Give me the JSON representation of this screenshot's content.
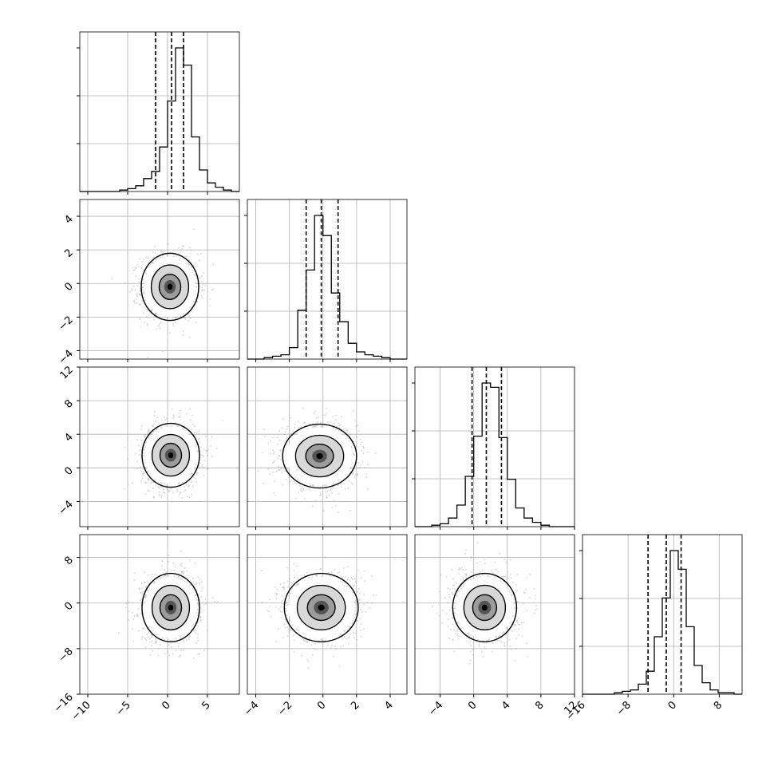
{
  "chart_data": {
    "type": "corner",
    "title": "",
    "grid": true,
    "scatter_color": "#999999",
    "density_colors": [
      "#ffffff",
      "#d0d0d0",
      "#a0a0a0",
      "#6a6a6a",
      "#303030",
      "#000000"
    ],
    "parameters": [
      {
        "range": [
          -11,
          9
        ],
        "ticks": [
          -10,
          -5,
          0,
          5
        ],
        "tick_labels": [
          "−10",
          "−5",
          "0",
          "5"
        ],
        "quantiles": [
          -1.5,
          0.5,
          2.0
        ],
        "mean": 0.5,
        "sigma": 1.6,
        "hist_counts": [
          0,
          0,
          0,
          0,
          0,
          1,
          2,
          4,
          9,
          14,
          31,
          63,
          100,
          88,
          38,
          15,
          6,
          3,
          1,
          0
        ]
      },
      {
        "range": [
          -4.5,
          5
        ],
        "ticks": [
          -4,
          -2,
          0,
          2,
          4
        ],
        "tick_labels": [
          "−4",
          "−2",
          "0",
          "2",
          "4"
        ],
        "quantiles": [
          -1.0,
          -0.1,
          0.9
        ],
        "mean": -0.1,
        "sigma": 1.0,
        "hist_counts": [
          0,
          0,
          1,
          2,
          3,
          8,
          34,
          62,
          100,
          86,
          46,
          26,
          11,
          5,
          3,
          2,
          1,
          0,
          0
        ]
      },
      {
        "range": [
          -7,
          12
        ],
        "ticks": [
          -4,
          0,
          4,
          8,
          12
        ],
        "tick_labels": [
          "−4",
          "0",
          "4",
          "8",
          "12"
        ],
        "quantiles": [
          -0.2,
          1.5,
          3.3
        ],
        "mean": 1.5,
        "sigma": 1.9,
        "hist_counts": [
          0,
          0,
          1,
          2,
          6,
          15,
          35,
          63,
          100,
          97,
          62,
          33,
          13,
          6,
          3,
          1,
          0,
          0,
          0
        ]
      },
      {
        "range": [
          -16,
          12
        ],
        "ticks": [
          -16,
          -8,
          0,
          8
        ],
        "tick_labels": [
          "−16",
          "−8",
          "0",
          "8"
        ],
        "quantiles": [
          -4.5,
          -1.3,
          1.3
        ],
        "mean": -1.0,
        "sigma": 3.0,
        "hist_counts": [
          0,
          0,
          0,
          0,
          1,
          2,
          3,
          7,
          16,
          40,
          67,
          100,
          87,
          47,
          20,
          8,
          3,
          1,
          1,
          0
        ]
      }
    ],
    "pairs": [
      {
        "row": 1,
        "col": 0,
        "center": [
          0.3,
          -0.2
        ],
        "spread": [
          1.8,
          1.0
        ],
        "rotation": 0
      },
      {
        "row": 2,
        "col": 0,
        "center": [
          0.4,
          1.5
        ],
        "spread": [
          1.8,
          1.9
        ],
        "rotation": 0
      },
      {
        "row": 2,
        "col": 1,
        "center": [
          -0.2,
          1.4
        ],
        "spread": [
          1.1,
          1.9
        ],
        "rotation": 0
      },
      {
        "row": 3,
        "col": 0,
        "center": [
          0.4,
          -0.8
        ],
        "spread": [
          1.8,
          3.0
        ],
        "rotation": 0
      },
      {
        "row": 3,
        "col": 1,
        "center": [
          -0.1,
          -0.8
        ],
        "spread": [
          1.1,
          3.0
        ],
        "rotation": 0
      },
      {
        "row": 3,
        "col": 2,
        "center": [
          1.3,
          -0.8
        ],
        "spread": [
          1.9,
          3.0
        ],
        "rotation": 0
      }
    ]
  }
}
